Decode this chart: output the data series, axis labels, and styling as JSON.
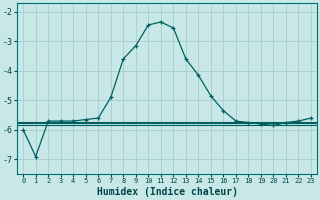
{
  "xlabel": "Humidex (Indice chaleur)",
  "ylabel": "",
  "background_color": "#c8e8e8",
  "grid_color": "#aacccc",
  "line_color": "#006060",
  "x_data": [
    0,
    1,
    2,
    3,
    4,
    5,
    6,
    7,
    8,
    9,
    10,
    11,
    12,
    13,
    14,
    15,
    16,
    17,
    18,
    19,
    20,
    21,
    22,
    23
  ],
  "y_main": [
    -6.0,
    -6.9,
    -5.7,
    -5.7,
    -5.7,
    -5.65,
    -5.6,
    -4.9,
    -3.6,
    -3.15,
    -2.45,
    -2.35,
    -2.55,
    -3.6,
    -4.15,
    -4.85,
    -5.35,
    -5.7,
    -5.75,
    -5.8,
    -5.85,
    -5.75,
    -5.7,
    -5.6
  ],
  "y_flat1": -5.72,
  "y_flat2": -5.78,
  "y_flat3": -5.82,
  "ylim": [
    -7.5,
    -1.7
  ],
  "xlim": [
    -0.5,
    23.5
  ],
  "yticks": [
    -7,
    -6,
    -5,
    -4,
    -3,
    -2
  ],
  "xticks": [
    0,
    1,
    2,
    3,
    4,
    5,
    6,
    7,
    8,
    9,
    10,
    11,
    12,
    13,
    14,
    15,
    16,
    17,
    18,
    19,
    20,
    21,
    22,
    23
  ]
}
